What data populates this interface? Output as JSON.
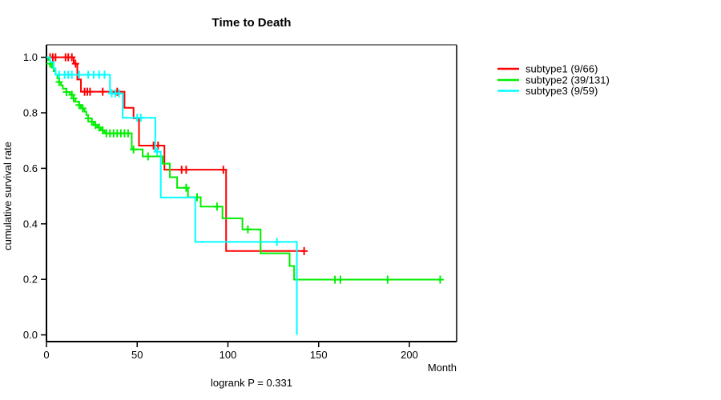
{
  "chart_data": {
    "type": "line",
    "variant": "kaplan-meier-step",
    "title": "Time to Death",
    "xlabel": "Month",
    "ylabel": "cumulative survival rate",
    "annotation": "logrank P = 0.331",
    "x_ticks": [
      0,
      50,
      100,
      150,
      200
    ],
    "y_ticks": [
      1.0,
      0.8,
      0.6,
      0.4,
      0.2,
      0.0
    ],
    "xlim": [
      0,
      226
    ],
    "ylim": [
      0.0,
      1.0
    ],
    "grid": false,
    "legend_position": "right-outside",
    "frame": {
      "top_color": "#808080",
      "right_color": "#3f3f3f",
      "axis_color": "#000000"
    },
    "series": [
      {
        "name": "subtype1 (9/66)",
        "color": "#ff0000",
        "steps": [
          [
            0,
            1.0
          ],
          [
            15,
            0.977
          ],
          [
            17,
            0.92
          ],
          [
            19,
            0.876
          ],
          [
            43,
            0.818
          ],
          [
            48,
            0.78
          ],
          [
            51,
            0.682
          ],
          [
            65,
            0.595
          ],
          [
            99,
            0.302
          ]
        ],
        "end_month": 142,
        "censors": [
          [
            2,
            1.0
          ],
          [
            3.5,
            1.0
          ],
          [
            5,
            1.0
          ],
          [
            10.5,
            1.0
          ],
          [
            12,
            1.0
          ],
          [
            14,
            1.0
          ],
          [
            16,
            0.977
          ],
          [
            21,
            0.876
          ],
          [
            22.5,
            0.876
          ],
          [
            24,
            0.876
          ],
          [
            31,
            0.876
          ],
          [
            39,
            0.876
          ],
          [
            59,
            0.682
          ],
          [
            61.5,
            0.682
          ],
          [
            74.5,
            0.595
          ],
          [
            77,
            0.595
          ],
          [
            97.5,
            0.595
          ],
          [
            142,
            0.302
          ]
        ]
      },
      {
        "name": "subtype2 (39/131)",
        "color": "#00ee00",
        "steps": [
          [
            0,
            1.0
          ],
          [
            1,
            0.99
          ],
          [
            2,
            0.977
          ],
          [
            3,
            0.963
          ],
          [
            4,
            0.95
          ],
          [
            5,
            0.937
          ],
          [
            6,
            0.924
          ],
          [
            7,
            0.911
          ],
          [
            8,
            0.899
          ],
          [
            9,
            0.887
          ],
          [
            11,
            0.875
          ],
          [
            13,
            0.865
          ],
          [
            15,
            0.852
          ],
          [
            16,
            0.84
          ],
          [
            18,
            0.828
          ],
          [
            19,
            0.816
          ],
          [
            21,
            0.804
          ],
          [
            22,
            0.792
          ],
          [
            23,
            0.78
          ],
          [
            25,
            0.768
          ],
          [
            26,
            0.756
          ],
          [
            28,
            0.747
          ],
          [
            30,
            0.737
          ],
          [
            32,
            0.726
          ],
          [
            47,
            0.668
          ],
          [
            53,
            0.643
          ],
          [
            64,
            0.617
          ],
          [
            68,
            0.568
          ],
          [
            72,
            0.53
          ],
          [
            78,
            0.496
          ],
          [
            85,
            0.462
          ],
          [
            97,
            0.42
          ],
          [
            108,
            0.38
          ],
          [
            118,
            0.294
          ],
          [
            134,
            0.248
          ],
          [
            136.5,
            0.199
          ]
        ],
        "end_month": 217,
        "censors": [
          [
            2,
            0.977
          ],
          [
            7,
            0.911
          ],
          [
            11,
            0.875
          ],
          [
            14,
            0.865
          ],
          [
            15,
            0.852
          ],
          [
            18,
            0.828
          ],
          [
            20,
            0.816
          ],
          [
            23,
            0.78
          ],
          [
            25,
            0.768
          ],
          [
            27,
            0.756
          ],
          [
            29,
            0.747
          ],
          [
            31,
            0.737
          ],
          [
            33,
            0.726
          ],
          [
            35,
            0.726
          ],
          [
            37,
            0.726
          ],
          [
            39,
            0.726
          ],
          [
            41,
            0.726
          ],
          [
            43,
            0.726
          ],
          [
            45,
            0.726
          ],
          [
            48,
            0.668
          ],
          [
            56,
            0.643
          ],
          [
            77,
            0.53
          ],
          [
            83,
            0.496
          ],
          [
            94,
            0.462
          ],
          [
            111,
            0.38
          ],
          [
            159,
            0.199
          ],
          [
            162,
            0.199
          ],
          [
            188,
            0.199
          ],
          [
            217,
            0.199
          ]
        ]
      },
      {
        "name": "subtype3 (9/59)",
        "color": "#00ffff",
        "steps": [
          [
            0,
            1.0
          ],
          [
            2,
            0.983
          ],
          [
            4,
            0.96
          ],
          [
            5,
            0.937
          ],
          [
            35,
            0.87
          ],
          [
            42,
            0.782
          ],
          [
            60,
            0.66
          ],
          [
            63,
            0.495
          ],
          [
            82,
            0.335
          ],
          [
            138,
            0.0
          ]
        ],
        "end_month": 138,
        "censors": [
          [
            7,
            0.937
          ],
          [
            10,
            0.937
          ],
          [
            12,
            0.937
          ],
          [
            14,
            0.937
          ],
          [
            18,
            0.937
          ],
          [
            23,
            0.937
          ],
          [
            26,
            0.937
          ],
          [
            29,
            0.937
          ],
          [
            32,
            0.937
          ],
          [
            36,
            0.87
          ],
          [
            38,
            0.87
          ],
          [
            40,
            0.87
          ],
          [
            50,
            0.782
          ],
          [
            52,
            0.782
          ],
          [
            61,
            0.66
          ],
          [
            127,
            0.335
          ]
        ]
      }
    ]
  }
}
